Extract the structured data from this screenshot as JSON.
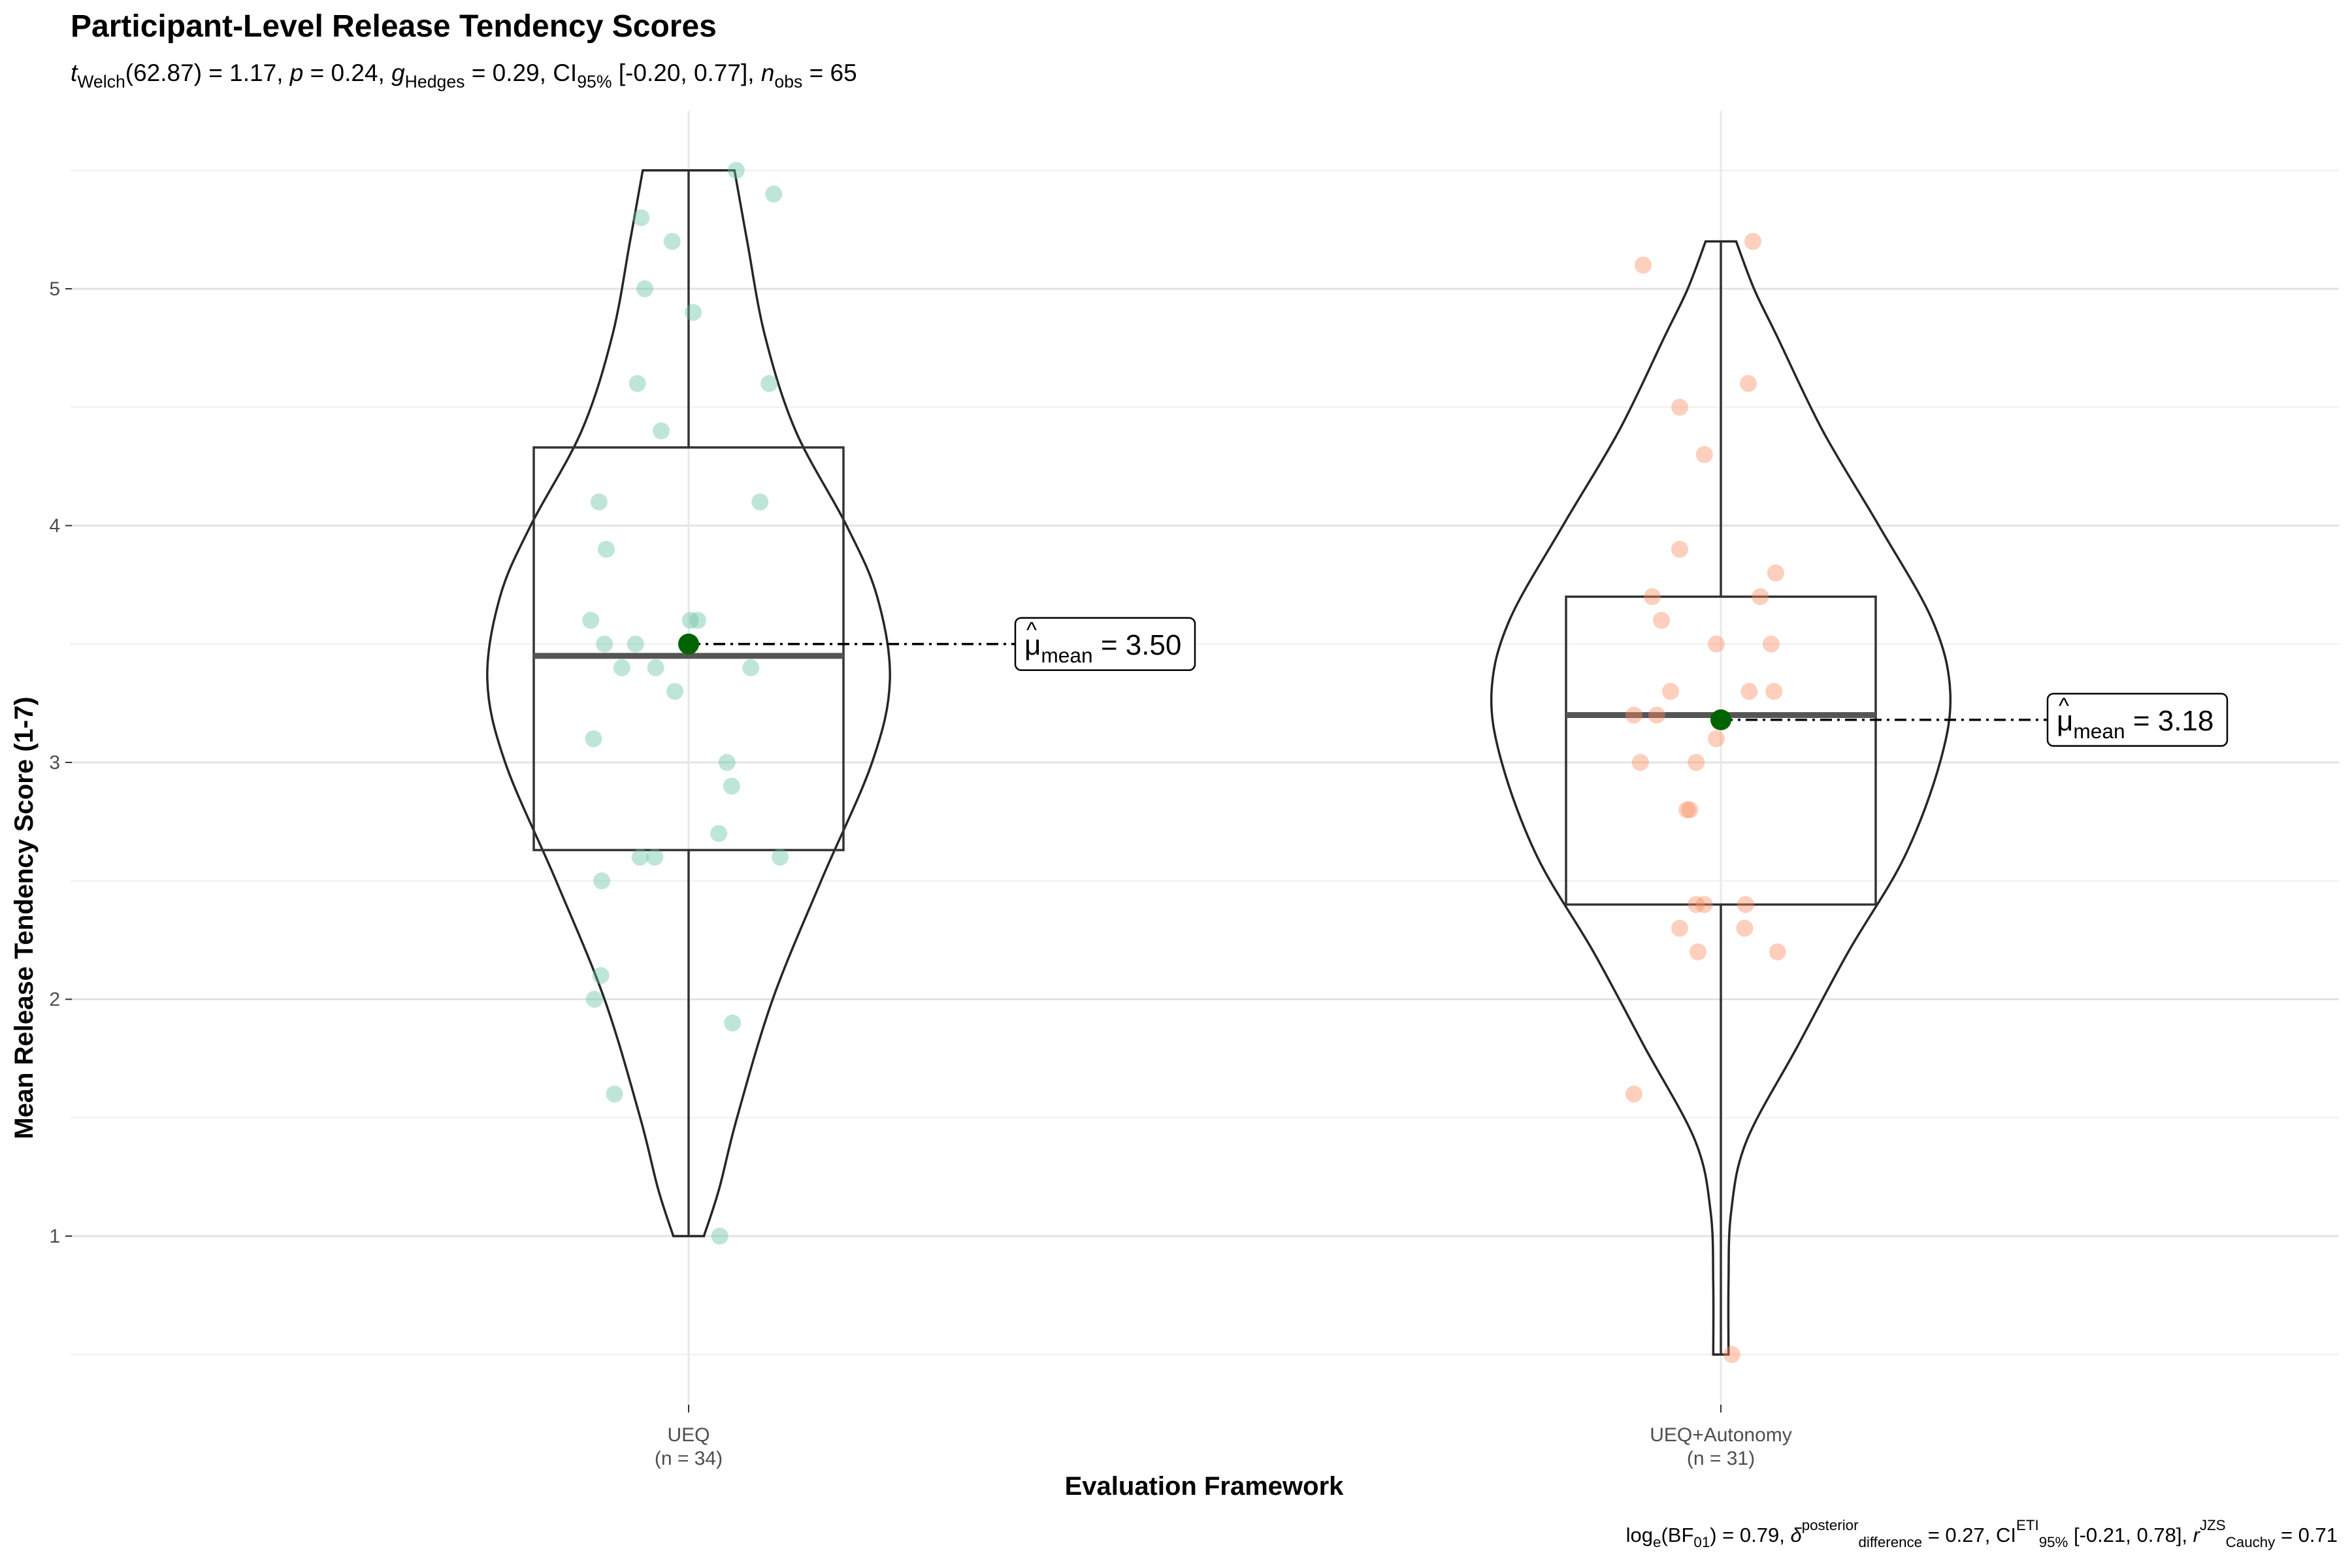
{
  "chart_data": {
    "type": "violin",
    "title": "Participant-Level Release Tendency Scores",
    "subtitle": {
      "t_label": "t",
      "t_sub": "Welch",
      "t_text": "(62.87) = 1.17, ",
      "p_label": "p",
      "p_text": " = 0.24, ",
      "g_label": "g",
      "g_sub": "Hedges",
      "g_text": " = 0.29, CI",
      "ci_sub": "95%",
      "ci_text": " [-0.20, 0.77], ",
      "n_label": "n",
      "n_sub": "obs",
      "n_text": " = 65"
    },
    "caption": {
      "bf_text": "log",
      "bf_sub_e": "e",
      "bf_mid": "(BF",
      "bf_sub_01": "01",
      "bf_end": ") = 0.79, ",
      "delta_sup": "posterior",
      "delta_sub": "difference",
      "delta_text": " = 0.27, CI",
      "ci_sup": "ETI",
      "ci_sub": "95%",
      "ci_text": " [-0.21, 0.78], ",
      "r_label": "r",
      "r_sup": "JZS",
      "r_sub": "Cauchy",
      "r_text": " = 0.71"
    },
    "xlabel": "Evaluation Framework",
    "ylabel": "Mean Release Tendency Score (1-7)",
    "ylim": [
      0.4,
      5.95
    ],
    "yticks": [
      1,
      2,
      3,
      4,
      5
    ],
    "grid": true,
    "mean_label_mu": "μ",
    "mean_label_sub": "mean",
    "groups": [
      {
        "name": "UEQ",
        "n_label": "(n = 34)",
        "color": "#66c2a5",
        "mean": 3.5,
        "mean_text": " = 3.50",
        "box": {
          "min": 1.0,
          "q1": 2.63,
          "median": 3.45,
          "q3": 4.33,
          "max": 5.5
        },
        "violin": [
          [
            1.0,
            0.06
          ],
          [
            1.2,
            0.12
          ],
          [
            1.5,
            0.19
          ],
          [
            2.0,
            0.33
          ],
          [
            2.5,
            0.52
          ],
          [
            3.0,
            0.72
          ],
          [
            3.35,
            0.79
          ],
          [
            3.7,
            0.74
          ],
          [
            4.0,
            0.62
          ],
          [
            4.4,
            0.42
          ],
          [
            4.8,
            0.3
          ],
          [
            5.2,
            0.23
          ],
          [
            5.5,
            0.18
          ]
        ],
        "points": [
          {
            "x": 0.52,
            "y": 5.5
          },
          {
            "x": 0.93,
            "y": 5.4
          },
          {
            "x": -0.52,
            "y": 5.3
          },
          {
            "x": -0.18,
            "y": 5.2
          },
          {
            "x": -0.48,
            "y": 5.0
          },
          {
            "x": 0.05,
            "y": 4.9
          },
          {
            "x": -0.56,
            "y": 4.6
          },
          {
            "x": 0.88,
            "y": 4.6
          },
          {
            "x": -0.3,
            "y": 4.4
          },
          {
            "x": -0.98,
            "y": 4.1
          },
          {
            "x": 0.78,
            "y": 4.1
          },
          {
            "x": -0.9,
            "y": 3.9
          },
          {
            "x": -1.07,
            "y": 3.6
          },
          {
            "x": 0.02,
            "y": 3.6
          },
          {
            "x": -0.92,
            "y": 3.5
          },
          {
            "x": -0.58,
            "y": 3.5
          },
          {
            "x": -0.73,
            "y": 3.4
          },
          {
            "x": -0.36,
            "y": 3.4
          },
          {
            "x": 0.68,
            "y": 3.4
          },
          {
            "x": -0.15,
            "y": 3.3
          },
          {
            "x": -1.04,
            "y": 3.1
          },
          {
            "x": 0.42,
            "y": 3.0
          },
          {
            "x": 0.47,
            "y": 2.9
          },
          {
            "x": 0.33,
            "y": 2.7
          },
          {
            "x": -0.53,
            "y": 2.6
          },
          {
            "x": -0.37,
            "y": 2.6
          },
          {
            "x": 1.0,
            "y": 2.6
          },
          {
            "x": -0.95,
            "y": 2.5
          },
          {
            "x": -0.96,
            "y": 2.1
          },
          {
            "x": -1.03,
            "y": 2.0
          },
          {
            "x": 0.48,
            "y": 1.9
          },
          {
            "x": -0.81,
            "y": 1.6
          },
          {
            "x": 0.34,
            "y": 1.0
          },
          {
            "x": 0.1,
            "y": 3.6
          }
        ]
      },
      {
        "name": "UEQ+Autonomy",
        "n_label": "(n = 31)",
        "color": "#fc8d62",
        "mean": 3.18,
        "mean_text": " = 3.18",
        "box": {
          "min": 0.5,
          "q1": 2.4,
          "median": 3.2,
          "q3": 3.7,
          "max": 5.2
        },
        "violin": [
          [
            0.5,
            0.03
          ],
          [
            0.8,
            0.03
          ],
          [
            1.1,
            0.04
          ],
          [
            1.4,
            0.1
          ],
          [
            1.8,
            0.3
          ],
          [
            2.2,
            0.5
          ],
          [
            2.6,
            0.72
          ],
          [
            3.0,
            0.86
          ],
          [
            3.3,
            0.9
          ],
          [
            3.6,
            0.83
          ],
          [
            4.0,
            0.62
          ],
          [
            4.4,
            0.4
          ],
          [
            4.8,
            0.22
          ],
          [
            5.0,
            0.13
          ],
          [
            5.2,
            0.06
          ]
        ],
        "points": [
          {
            "x": 0.35,
            "y": 5.2
          },
          {
            "x": -0.85,
            "y": 5.1
          },
          {
            "x": 0.3,
            "y": 4.6
          },
          {
            "x": -0.45,
            "y": 4.5
          },
          {
            "x": -0.18,
            "y": 4.3
          },
          {
            "x": -0.45,
            "y": 3.9
          },
          {
            "x": 0.6,
            "y": 3.8
          },
          {
            "x": -0.75,
            "y": 3.7
          },
          {
            "x": 0.43,
            "y": 3.7
          },
          {
            "x": -0.65,
            "y": 3.6
          },
          {
            "x": -0.05,
            "y": 3.5
          },
          {
            "x": 0.55,
            "y": 3.5
          },
          {
            "x": -0.55,
            "y": 3.3
          },
          {
            "x": 0.31,
            "y": 3.3
          },
          {
            "x": 0.58,
            "y": 3.3
          },
          {
            "x": -0.95,
            "y": 3.2
          },
          {
            "x": -0.7,
            "y": 3.2
          },
          {
            "x": -0.05,
            "y": 3.1
          },
          {
            "x": -0.88,
            "y": 3.0
          },
          {
            "x": -0.27,
            "y": 3.0
          },
          {
            "x": -0.37,
            "y": 2.8
          },
          {
            "x": -0.34,
            "y": 2.8
          },
          {
            "x": -0.27,
            "y": 2.4
          },
          {
            "x": -0.18,
            "y": 2.4
          },
          {
            "x": 0.27,
            "y": 2.4
          },
          {
            "x": -0.45,
            "y": 2.3
          },
          {
            "x": 0.26,
            "y": 2.3
          },
          {
            "x": -0.25,
            "y": 2.2
          },
          {
            "x": 0.62,
            "y": 2.2
          },
          {
            "x": -0.95,
            "y": 1.6
          },
          {
            "x": 0.12,
            "y": 0.5
          }
        ]
      }
    ]
  }
}
